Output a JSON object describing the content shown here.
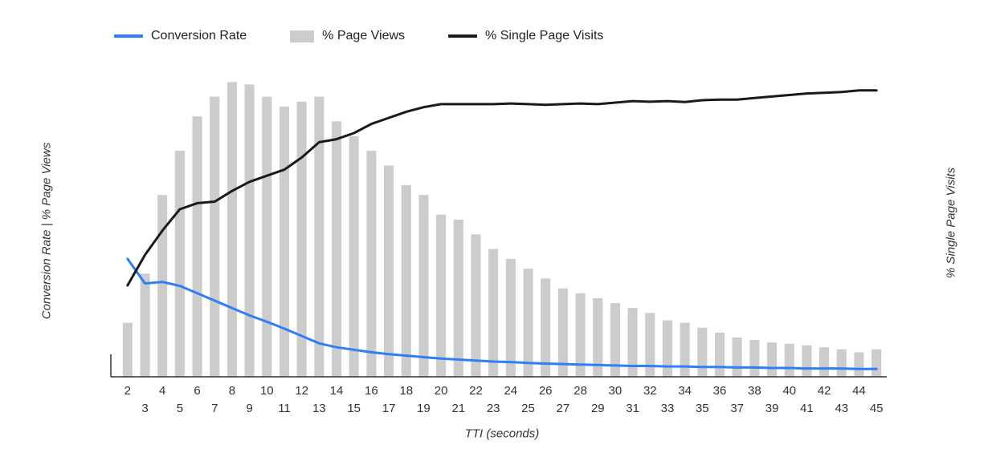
{
  "legend": {
    "items": [
      {
        "label": "Conversion Rate",
        "type": "line",
        "color": "#2d7ff9"
      },
      {
        "label": "% Page Views",
        "type": "bar",
        "color": "#cccccc"
      },
      {
        "label": "% Single Page Visits",
        "type": "line",
        "color": "#1a1a1a"
      }
    ]
  },
  "axes": {
    "left_title": "Conversion Rate | % Page Views",
    "right_title": "% Single Page Visits",
    "x_title": "TTI (seconds)"
  },
  "chart_data": {
    "type": "combo",
    "title": "",
    "xlabel": "TTI (seconds)",
    "ylabel_left": "Conversion Rate | % Page Views",
    "ylabel_right": "% Single Page Visits",
    "grid": false,
    "legend_position": "top",
    "left_ylim": [
      0,
      6.2
    ],
    "right_ylim": [
      0,
      100
    ],
    "x": [
      2,
      3,
      4,
      5,
      6,
      7,
      8,
      9,
      10,
      11,
      12,
      13,
      14,
      15,
      16,
      17,
      18,
      19,
      20,
      21,
      22,
      23,
      24,
      25,
      26,
      27,
      28,
      29,
      30,
      31,
      32,
      33,
      34,
      35,
      36,
      37,
      38,
      39,
      40,
      41,
      42,
      43,
      44,
      45
    ],
    "series": [
      {
        "name": "% Page Views",
        "type": "bar",
        "axis": "left",
        "color": "#cccccc",
        "values": [
          1.1,
          2.1,
          3.7,
          4.6,
          5.3,
          5.7,
          6.0,
          5.95,
          5.7,
          5.5,
          5.6,
          5.7,
          5.2,
          4.9,
          4.6,
          4.3,
          3.9,
          3.7,
          3.3,
          3.2,
          2.9,
          2.6,
          2.4,
          2.2,
          2.0,
          1.8,
          1.7,
          1.6,
          1.5,
          1.4,
          1.3,
          1.15,
          1.1,
          1.0,
          0.9,
          0.8,
          0.75,
          0.7,
          0.67,
          0.64,
          0.6,
          0.56,
          0.5,
          0.56
        ]
      },
      {
        "name": "Conversion Rate",
        "type": "line",
        "axis": "left",
        "color": "#2d7ff9",
        "values": [
          2.4,
          1.9,
          1.93,
          1.85,
          1.7,
          1.55,
          1.4,
          1.25,
          1.12,
          0.98,
          0.83,
          0.68,
          0.6,
          0.55,
          0.5,
          0.46,
          0.43,
          0.4,
          0.37,
          0.35,
          0.33,
          0.31,
          0.3,
          0.28,
          0.27,
          0.26,
          0.25,
          0.24,
          0.23,
          0.22,
          0.22,
          0.21,
          0.21,
          0.2,
          0.2,
          0.19,
          0.19,
          0.18,
          0.18,
          0.17,
          0.17,
          0.17,
          0.16,
          0.16
        ]
      },
      {
        "name": "% Single Page Visits",
        "type": "line",
        "axis": "right",
        "color": "#1a1a1a",
        "values": [
          30,
          40,
          48,
          55,
          57,
          57.5,
          61,
          64,
          66,
          68,
          72,
          77,
          78,
          80,
          83,
          85,
          87,
          88.5,
          89.5,
          89.5,
          89.5,
          89.5,
          89.7,
          89.5,
          89.3,
          89.5,
          89.7,
          89.5,
          90,
          90.5,
          90.3,
          90.5,
          90.2,
          90.8,
          91,
          91,
          91.5,
          92,
          92.5,
          93,
          93.2,
          93.5,
          94,
          94
        ]
      }
    ]
  }
}
